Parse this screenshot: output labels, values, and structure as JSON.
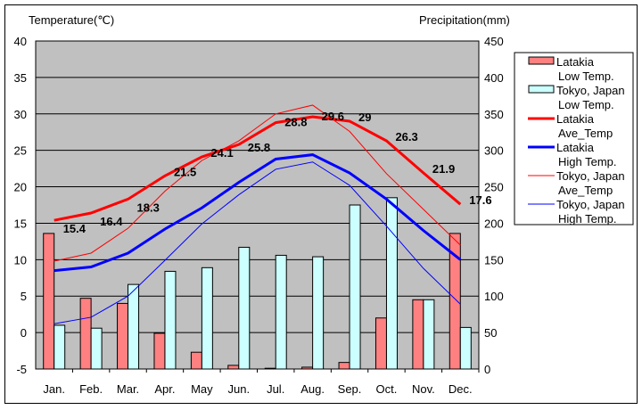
{
  "chart_data": {
    "type": "bar+line",
    "y_left_label": "Temperature(℃)",
    "y_right_label": "Precipitation(mm)",
    "ylim_left": [
      -5,
      40
    ],
    "ylim_right": [
      0,
      450
    ],
    "left_ticks": [
      40,
      35,
      30,
      25,
      20,
      15,
      10,
      5,
      0,
      -5
    ],
    "right_ticks": [
      450,
      400,
      350,
      300,
      250,
      200,
      150,
      100,
      50,
      0
    ],
    "categories": [
      "Jan.",
      "Feb.",
      "Mar.",
      "Apr.",
      "May",
      "Jun.",
      "Jul.",
      "Aug.",
      "Sep.",
      "Oct.",
      "Nov.",
      "Dec."
    ],
    "grid": true,
    "legend_position": "right",
    "bars": [
      {
        "name": "Latakia",
        "name2": "Low Temp.",
        "color": "#ff8080",
        "axis": "right",
        "values": [
          186,
          97,
          90,
          49,
          23,
          5,
          1,
          2.5,
          9,
          70,
          95,
          186
        ]
      },
      {
        "name": "Tokyo, Japan",
        "name2": "Low Temp.",
        "color": "#ccffff",
        "axis": "right",
        "values": [
          60,
          56,
          116,
          134,
          139,
          167,
          156,
          154,
          225,
          235,
          95,
          57
        ]
      }
    ],
    "lines": [
      {
        "name": "Latakia",
        "name2": "Ave_Temp",
        "color": "#ff0000",
        "width": 3,
        "labels": true,
        "values": [
          15.4,
          16.4,
          18.3,
          21.5,
          24.1,
          25.8,
          28.8,
          29.6,
          29,
          26.3,
          21.9,
          17.6
        ]
      },
      {
        "name": "Latakia",
        "name2": "High Temp.",
        "color": "#0000ff",
        "width": 3,
        "labels": false,
        "values": [
          8.5,
          9.0,
          10.9,
          14.2,
          17.1,
          20.6,
          23.8,
          24.4,
          21.9,
          18.3,
          14.0,
          10.0
        ]
      },
      {
        "name": "Tokyo, Japan",
        "name2": "Ave_Temp",
        "color": "#ff0000",
        "width": 1,
        "labels": false,
        "values": [
          9.8,
          10.9,
          14.3,
          19.4,
          23.6,
          26.3,
          30.0,
          31.2,
          27.6,
          21.8,
          16.9,
          12.0
        ]
      },
      {
        "name": "Tokyo, Japan",
        "name2": "High Temp.",
        "color": "#0000ff",
        "width": 1,
        "labels": false,
        "values": [
          1.2,
          2.1,
          5.0,
          9.9,
          14.9,
          18.9,
          22.4,
          23.4,
          20.2,
          14.6,
          8.8,
          3.9
        ]
      }
    ]
  }
}
